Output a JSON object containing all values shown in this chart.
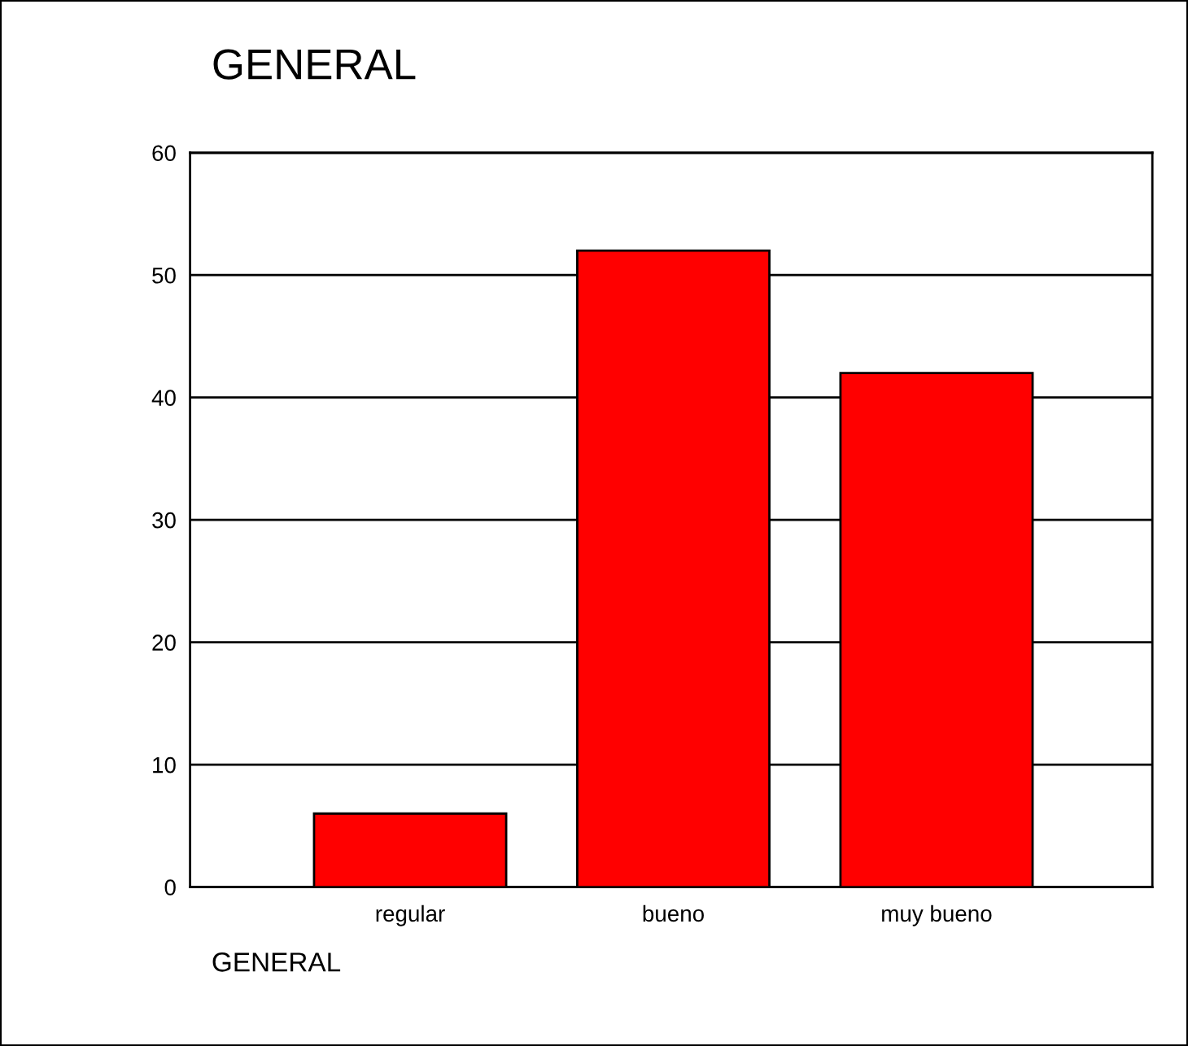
{
  "chart_data": {
    "type": "bar",
    "title": "GENERAL",
    "xlabel": "GENERAL",
    "categories": [
      "regular",
      "bueno",
      "muy bueno"
    ],
    "values": [
      6,
      52,
      42
    ],
    "color": "#ff0000",
    "ylim": [
      0,
      60
    ],
    "yticks": [
      0,
      10,
      20,
      30,
      40,
      50,
      60
    ],
    "grid": "y",
    "legend": false
  }
}
